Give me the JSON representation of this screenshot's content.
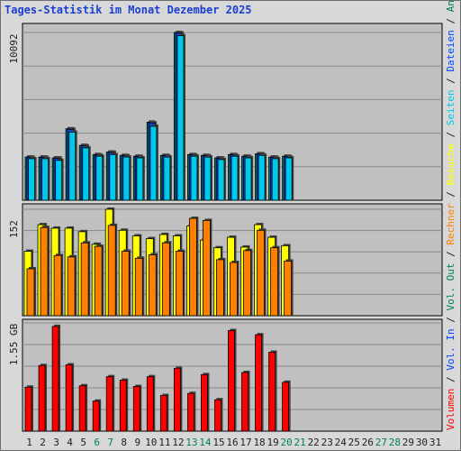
{
  "title": "Tages-Statistik im Monat Dezember 2025",
  "colors": {
    "plot_bg": "#c0c0c0",
    "anfragen": "#00805c",
    "dateien": "#0044ff",
    "seiten": "#00c8e8",
    "besuche": "#ffff00",
    "rechner": "#ff8000",
    "vol_out": "#00805c",
    "vol_in": "#0044ff",
    "volumen": "#ff0000",
    "day_normal": "#202020",
    "day_weekend": "#00805c"
  },
  "chart_data": [
    {
      "type": "bar",
      "panel": "top",
      "ytick": "10092",
      "ymax": 10092,
      "x": [
        "1",
        "2",
        "3",
        "4",
        "5",
        "6",
        "7",
        "8",
        "9",
        "10",
        "11",
        "12",
        "13",
        "14",
        "15",
        "16",
        "17",
        "18",
        "19",
        "20",
        "21",
        "22",
        "23",
        "24",
        "25",
        "26",
        "27",
        "28",
        "29",
        "30",
        "31"
      ],
      "series": [
        {
          "name": "Anfragen",
          "values": [
            2600,
            2600,
            2550,
            4300,
            3300,
            2750,
            2900,
            2700,
            2650,
            4700,
            2700,
            10092,
            2750,
            2700,
            2550,
            2750,
            2650,
            2800,
            2600,
            2650,
            0,
            0,
            0,
            0,
            0,
            0,
            0,
            0,
            0,
            0,
            0
          ]
        },
        {
          "name": "Dateien",
          "values": [
            2580,
            2580,
            2530,
            4270,
            3270,
            2720,
            2870,
            2680,
            2630,
            4650,
            2680,
            10050,
            2730,
            2680,
            2530,
            2730,
            2630,
            2780,
            2580,
            2630,
            0,
            0,
            0,
            0,
            0,
            0,
            0,
            0,
            0,
            0,
            0
          ]
        },
        {
          "name": "Seiten",
          "values": [
            2500,
            2500,
            2400,
            4100,
            3150,
            2650,
            2750,
            2600,
            2550,
            4450,
            2600,
            9900,
            2650,
            2600,
            2450,
            2650,
            2550,
            2700,
            2500,
            2550,
            0,
            0,
            0,
            0,
            0,
            0,
            0,
            0,
            0,
            0,
            0
          ]
        }
      ]
    },
    {
      "type": "bar",
      "panel": "middle",
      "ytick": "152",
      "ymax": 152,
      "x": [
        "1",
        "2",
        "3",
        "4",
        "5",
        "6",
        "7",
        "8",
        "9",
        "10",
        "11",
        "12",
        "13",
        "14",
        "15",
        "16",
        "17",
        "18",
        "19",
        "20",
        "21",
        "22",
        "23",
        "24",
        "25",
        "26",
        "27",
        "28",
        "29",
        "30",
        "31"
      ],
      "series": [
        {
          "name": "Besuche",
          "values": [
            92,
            130,
            125,
            125,
            120,
            102,
            152,
            122,
            114,
            110,
            116,
            114,
            128,
            108,
            97,
            112,
            98,
            130,
            112,
            100,
            0,
            0,
            0,
            0,
            0,
            0,
            0,
            0,
            0,
            0,
            0
          ]
        },
        {
          "name": "Rechner",
          "values": [
            67,
            126,
            86,
            84,
            104,
            99,
            129,
            92,
            82,
            87,
            104,
            92,
            139,
            136,
            80,
            76,
            93,
            122,
            97,
            78,
            0,
            0,
            0,
            0,
            0,
            0,
            0,
            0,
            0,
            0,
            0
          ]
        }
      ]
    },
    {
      "type": "bar",
      "panel": "bottom",
      "ytick": "1.55 GB",
      "ymax": 1.55,
      "x": [
        "1",
        "2",
        "3",
        "4",
        "5",
        "6",
        "7",
        "8",
        "9",
        "10",
        "11",
        "12",
        "13",
        "14",
        "15",
        "16",
        "17",
        "18",
        "19",
        "20",
        "21",
        "22",
        "23",
        "24",
        "25",
        "26",
        "27",
        "28",
        "29",
        "30",
        "31"
      ],
      "series": [
        {
          "name": "Volumen",
          "values": [
            0.63,
            0.94,
            1.5,
            0.95,
            0.65,
            0.43,
            0.78,
            0.73,
            0.64,
            0.78,
            0.51,
            0.9,
            0.54,
            0.81,
            0.45,
            1.44,
            0.84,
            1.38,
            1.13,
            0.7,
            0,
            0,
            0,
            0,
            0,
            0,
            0,
            0,
            0,
            0,
            0
          ]
        }
      ]
    }
  ],
  "days": [
    {
      "label": "1",
      "weekend": false
    },
    {
      "label": "2",
      "weekend": false
    },
    {
      "label": "3",
      "weekend": false
    },
    {
      "label": "4",
      "weekend": false
    },
    {
      "label": "5",
      "weekend": false
    },
    {
      "label": "6",
      "weekend": true
    },
    {
      "label": "7",
      "weekend": true
    },
    {
      "label": "8",
      "weekend": false
    },
    {
      "label": "9",
      "weekend": false
    },
    {
      "label": "10",
      "weekend": false
    },
    {
      "label": "11",
      "weekend": false
    },
    {
      "label": "12",
      "weekend": false
    },
    {
      "label": "13",
      "weekend": true
    },
    {
      "label": "14",
      "weekend": true
    },
    {
      "label": "15",
      "weekend": false
    },
    {
      "label": "16",
      "weekend": false
    },
    {
      "label": "17",
      "weekend": false
    },
    {
      "label": "18",
      "weekend": false
    },
    {
      "label": "19",
      "weekend": false
    },
    {
      "label": "20",
      "weekend": true
    },
    {
      "label": "21",
      "weekend": true
    },
    {
      "label": "22",
      "weekend": false
    },
    {
      "label": "23",
      "weekend": false
    },
    {
      "label": "24",
      "weekend": false
    },
    {
      "label": "25",
      "weekend": false
    },
    {
      "label": "26",
      "weekend": false
    },
    {
      "label": "27",
      "weekend": true
    },
    {
      "label": "28",
      "weekend": true
    },
    {
      "label": "29",
      "weekend": false
    },
    {
      "label": "30",
      "weekend": false
    },
    {
      "label": "31",
      "weekend": false
    }
  ],
  "right_labels": [
    {
      "text": "Anfragen",
      "color": "anfragen"
    },
    {
      "text": "Dateien",
      "color": "dateien"
    },
    {
      "text": "Seiten",
      "color": "seiten"
    },
    {
      "text": "Besuche",
      "color": "besuche"
    },
    {
      "text": "Rechner",
      "color": "rechner"
    },
    {
      "text": "Vol. Out",
      "color": "vol_out"
    },
    {
      "text": "Vol. In",
      "color": "vol_in"
    },
    {
      "text": "Volumen",
      "color": "volumen"
    }
  ],
  "separator": "/"
}
